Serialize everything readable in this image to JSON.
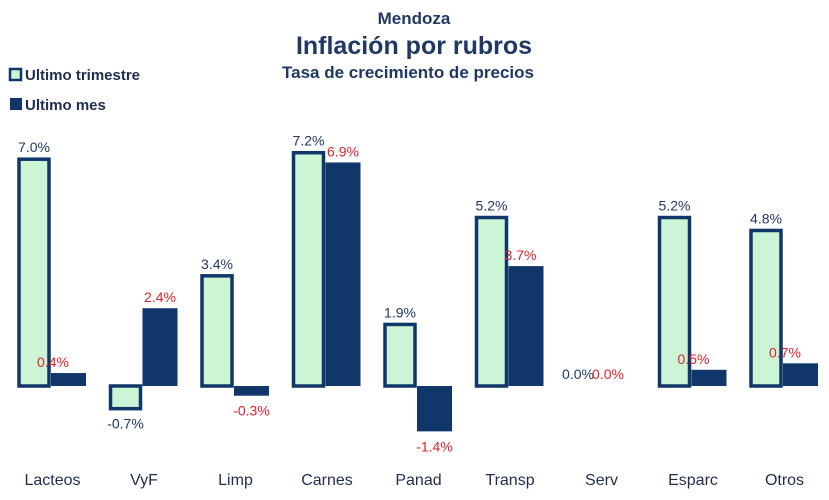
{
  "chart_data": {
    "type": "bar",
    "title_super": "Mendoza",
    "title": "Inflación por rubros",
    "subtitle": "Tasa de crecimiento  de precios",
    "categories": [
      "Lacteos",
      "VyF",
      "Limp",
      "Carnes",
      "Panad",
      "Transp",
      "Serv",
      "Esparc",
      "Otros"
    ],
    "series": [
      {
        "name": "Ultimo trimestre",
        "values": [
          7.0,
          -0.7,
          3.4,
          7.2,
          1.9,
          5.2,
          0.0,
          5.2,
          4.8
        ],
        "labels": [
          "7.0%",
          "-0.7%",
          "3.4%",
          "7.2%",
          "1.9%",
          "5.2%",
          "0.0%",
          "5.2%",
          "4.8%"
        ],
        "fill": "#ccf5d6",
        "stroke": "#10366a",
        "label_color": "#1f3864"
      },
      {
        "name": "Ultimo mes",
        "values": [
          0.4,
          2.4,
          -0.3,
          6.9,
          -1.4,
          3.7,
          0.0,
          0.5,
          0.7
        ],
        "labels": [
          "0.4%",
          "2.4%",
          "-0.3%",
          "6.9%",
          "-1.4%",
          "3.7%",
          "0.0%",
          "0.5%",
          "0.7%"
        ],
        "fill": "#10366a",
        "label_color": "#e0202a"
      }
    ],
    "legend_position": "top-left",
    "grid": false,
    "ylim": [
      -1.9,
      7.4
    ]
  }
}
